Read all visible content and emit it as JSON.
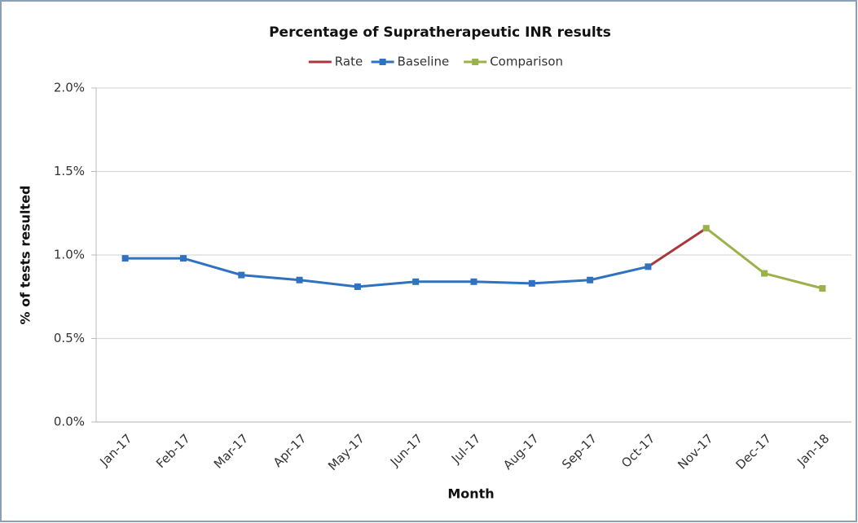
{
  "chart_data": {
    "type": "line",
    "title": "Percentage of Supratherapeutic INR results",
    "x_label": "Month",
    "y_label": "% of tests resulted",
    "categories": [
      "Jan-17",
      "Feb-17",
      "Mar-17",
      "Apr-17",
      "May-17",
      "Jun-17",
      "Jul-17",
      "Aug-17",
      "Sep-17",
      "Oct-17",
      "Nov-17",
      "Dec-17",
      "Jan-18"
    ],
    "series": [
      {
        "name": "Rate",
        "color": "#a8383b",
        "marker": false,
        "values": [
          null,
          null,
          null,
          null,
          null,
          null,
          null,
          null,
          null,
          0.93,
          1.16,
          null,
          null
        ]
      },
      {
        "name": "Baseline",
        "color": "#2f73c0",
        "marker": true,
        "values": [
          0.98,
          0.98,
          0.88,
          0.85,
          0.81,
          0.84,
          0.84,
          0.83,
          0.85,
          0.93,
          null,
          null,
          null
        ]
      },
      {
        "name": "Comparison",
        "color": "#9bb24a",
        "marker": true,
        "values": [
          null,
          null,
          null,
          null,
          null,
          null,
          null,
          null,
          null,
          null,
          1.16,
          0.89,
          0.8
        ]
      }
    ],
    "ylim": [
      0,
      2
    ],
    "yticks": [
      {
        "value": 0,
        "label": "0.0%"
      },
      {
        "value": 0.5,
        "label": "0.5%"
      },
      {
        "value": 1,
        "label": "1.0%"
      },
      {
        "value": 1.5,
        "label": "1.5%"
      },
      {
        "value": 2,
        "label": "2.0%"
      }
    ],
    "grid": true,
    "legend": "top"
  }
}
